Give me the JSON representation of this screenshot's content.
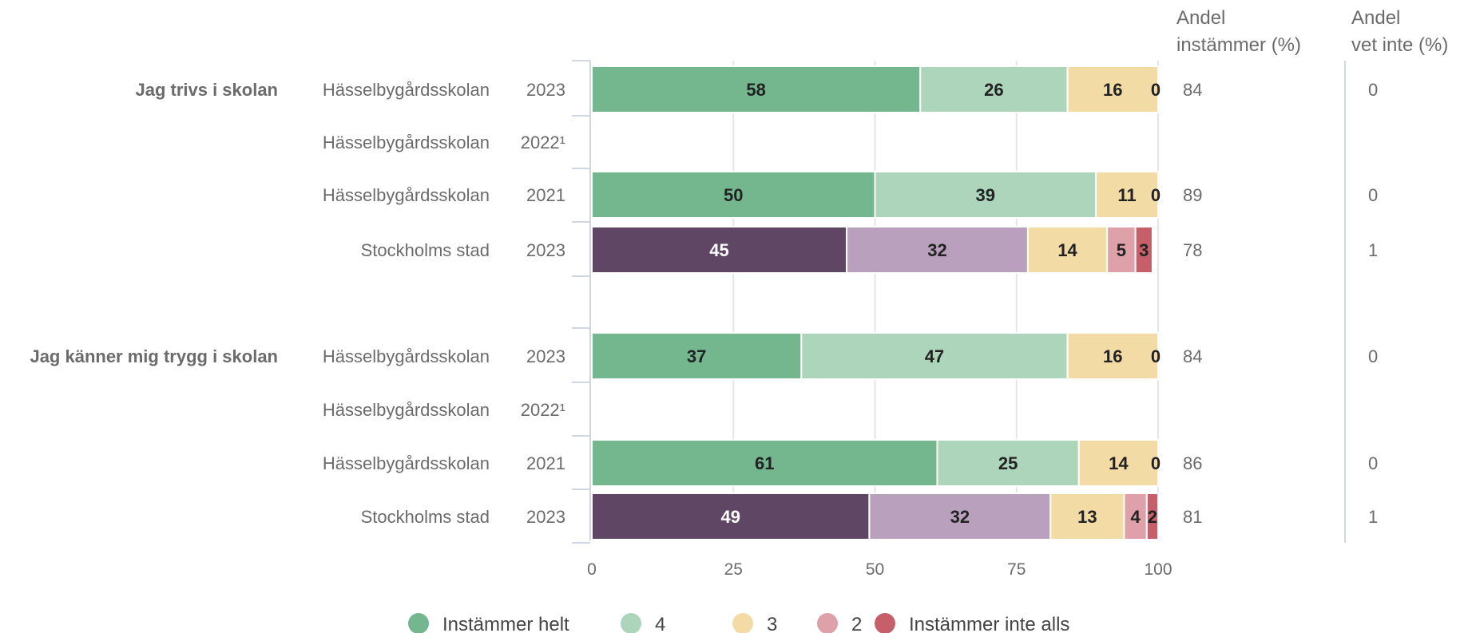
{
  "chart_data": {
    "type": "bar",
    "orientation": "horizontal",
    "stacked": true,
    "xlim": [
      0,
      100
    ],
    "xticks": [
      "0",
      "25",
      "50",
      "75",
      "100"
    ],
    "grid": true,
    "legend_placement": "bottom",
    "colors": {
      "green": [
        "#74b78e",
        "#add5bb",
        "#f3dba6",
        "#deA0a9",
        "#c75f6b"
      ],
      "purple": [
        "#5f4664",
        "#b9a0bd",
        "#f3dba6",
        "#dea0a9",
        "#c75f6b"
      ]
    },
    "legend": [
      {
        "label": "Instämmer helt",
        "color": "#74b78e"
      },
      {
        "label": "4",
        "color": "#add5bb"
      },
      {
        "label": "3",
        "color": "#f3dba6"
      },
      {
        "label": "2",
        "color": "#dea0a9"
      },
      {
        "label": "Instämmer inte alls",
        "color": "#c75f6b"
      }
    ],
    "columns": {
      "share_agree_header": [
        "Andel",
        "instämmer (%)"
      ],
      "share_unknown_header": [
        "Andel",
        "vet inte (%)"
      ]
    },
    "groups": [
      {
        "question": "Jag trivs i skolan",
        "rows": [
          {
            "unit": "Hässelbygårdsskolan",
            "year": "2023",
            "palette": "green",
            "values": [
              58,
              26,
              16,
              0,
              0
            ],
            "labels": [
              "58",
              "26",
              "16",
              "0",
              ""
            ],
            "share_agree": "84",
            "share_unknown": "0"
          },
          {
            "unit": "Hässelbygårdsskolan",
            "year": "2022¹",
            "palette": "green",
            "values": [],
            "labels": [],
            "share_agree": "",
            "share_unknown": ""
          },
          {
            "unit": "Hässelbygårdsskolan",
            "year": "2021",
            "palette": "green",
            "values": [
              50,
              39,
              11,
              0,
              0
            ],
            "labels": [
              "50",
              "39",
              "11",
              "0",
              ""
            ],
            "share_agree": "89",
            "share_unknown": "0"
          },
          {
            "unit": "Stockholms stad",
            "year": "2023",
            "palette": "purple",
            "values": [
              45,
              32,
              14,
              5,
              3
            ],
            "labels": [
              "45",
              "32",
              "14",
              "5",
              "3"
            ],
            "share_agree": "78",
            "share_unknown": "1"
          }
        ]
      },
      {
        "question": "Jag känner mig trygg i skolan",
        "rows": [
          {
            "unit": "Hässelbygårdsskolan",
            "year": "2023",
            "palette": "green",
            "values": [
              37,
              47,
              16,
              0,
              0
            ],
            "labels": [
              "37",
              "47",
              "16",
              "0",
              ""
            ],
            "share_agree": "84",
            "share_unknown": "0"
          },
          {
            "unit": "Hässelbygårdsskolan",
            "year": "2022¹",
            "palette": "green",
            "values": [],
            "labels": [],
            "share_agree": "",
            "share_unknown": ""
          },
          {
            "unit": "Hässelbygårdsskolan",
            "year": "2021",
            "palette": "green",
            "values": [
              61,
              25,
              14,
              0,
              0
            ],
            "labels": [
              "61",
              "25",
              "14",
              "0",
              ""
            ],
            "share_agree": "86",
            "share_unknown": "0"
          },
          {
            "unit": "Stockholms stad",
            "year": "2023",
            "palette": "purple",
            "values": [
              49,
              32,
              13,
              4,
              2
            ],
            "labels": [
              "49",
              "32",
              "13",
              "4",
              "2"
            ],
            "share_agree": "81",
            "share_unknown": "1"
          }
        ]
      }
    ]
  }
}
